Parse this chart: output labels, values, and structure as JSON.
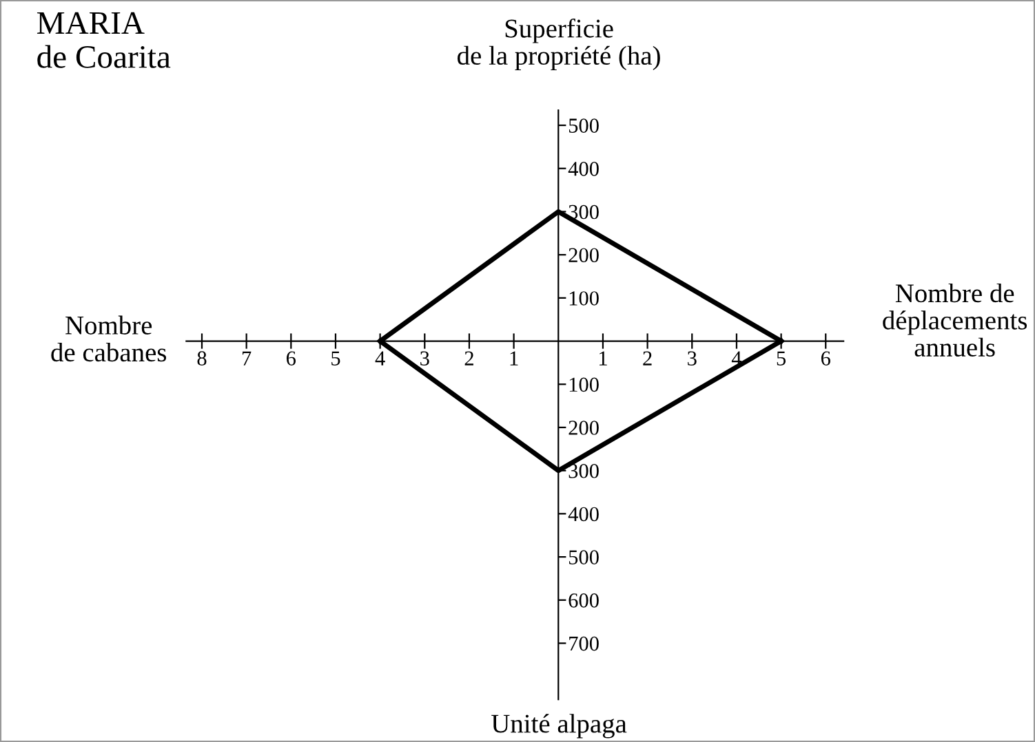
{
  "chart_data": {
    "type": "line",
    "title": "MARIA\nde Coarita",
    "annotations": [
      "Superficie\nde la propriété (ha)",
      "Nombre de\ndéplacements\nannuels",
      "Unité alpaga",
      "Nombre\nde cabanes"
    ],
    "series": [
      {
        "color": "#000000",
        "x": [
          -4,
          0,
          5
        ],
        "values": [
          0,
          300,
          0
        ]
      },
      {
        "color": "#000000",
        "x": [
          -4,
          0,
          5
        ],
        "values": [
          0,
          -300,
          0
        ]
      }
    ],
    "xlim": [
      -8.35,
      6.4
    ],
    "ylim": [
      -830,
      535
    ],
    "xticks": [
      {
        "value": -8,
        "label": "8"
      },
      {
        "value": -7,
        "label": "7"
      },
      {
        "value": -6,
        "label": "6"
      },
      {
        "value": -5,
        "label": "5"
      },
      {
        "value": -4,
        "label": "4"
      },
      {
        "value": -3,
        "label": "3"
      },
      {
        "value": -2,
        "label": "2"
      },
      {
        "value": -1,
        "label": "1"
      },
      1,
      2,
      3,
      4,
      5,
      6
    ],
    "yticks": [
      {
        "value": -700,
        "label": "700"
      },
      {
        "value": -600,
        "label": "600"
      },
      {
        "value": -500,
        "label": "500"
      },
      {
        "value": -400,
        "label": "400"
      },
      {
        "value": -300,
        "label": "300"
      },
      {
        "value": -200,
        "label": "200"
      },
      {
        "value": -100,
        "label": "100"
      },
      100,
      200,
      300,
      400,
      500
    ],
    "grid": false,
    "legend": false,
    "marker": "none",
    "line_style": "solid"
  }
}
